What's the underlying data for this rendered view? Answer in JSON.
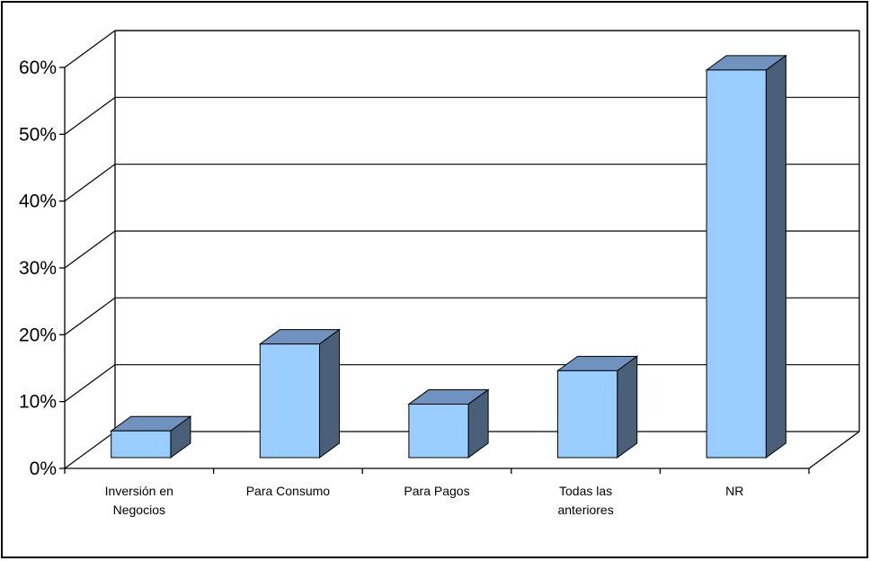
{
  "chart_data": {
    "type": "bar",
    "title": "",
    "xlabel": "",
    "ylabel": "",
    "categories": [
      [
        "Inversión en",
        "Negocios"
      ],
      [
        "Para Consumo"
      ],
      [
        "Para Pagos"
      ],
      [
        "Todas las",
        "anteriores"
      ],
      [
        "NR"
      ]
    ],
    "values": [
      4,
      17,
      8,
      13,
      58
    ],
    "ylim": [
      0,
      60
    ],
    "yticks": [
      "0%",
      "10%",
      "20%",
      "30%",
      "40%",
      "50%",
      "60%"
    ],
    "grid": true,
    "legend": "none",
    "colors": {
      "bar_front": "#99CCFF",
      "bar_top": "#7092BE",
      "bar_side": "#4A6078",
      "grid": "#000000",
      "frame": "#000000"
    }
  }
}
